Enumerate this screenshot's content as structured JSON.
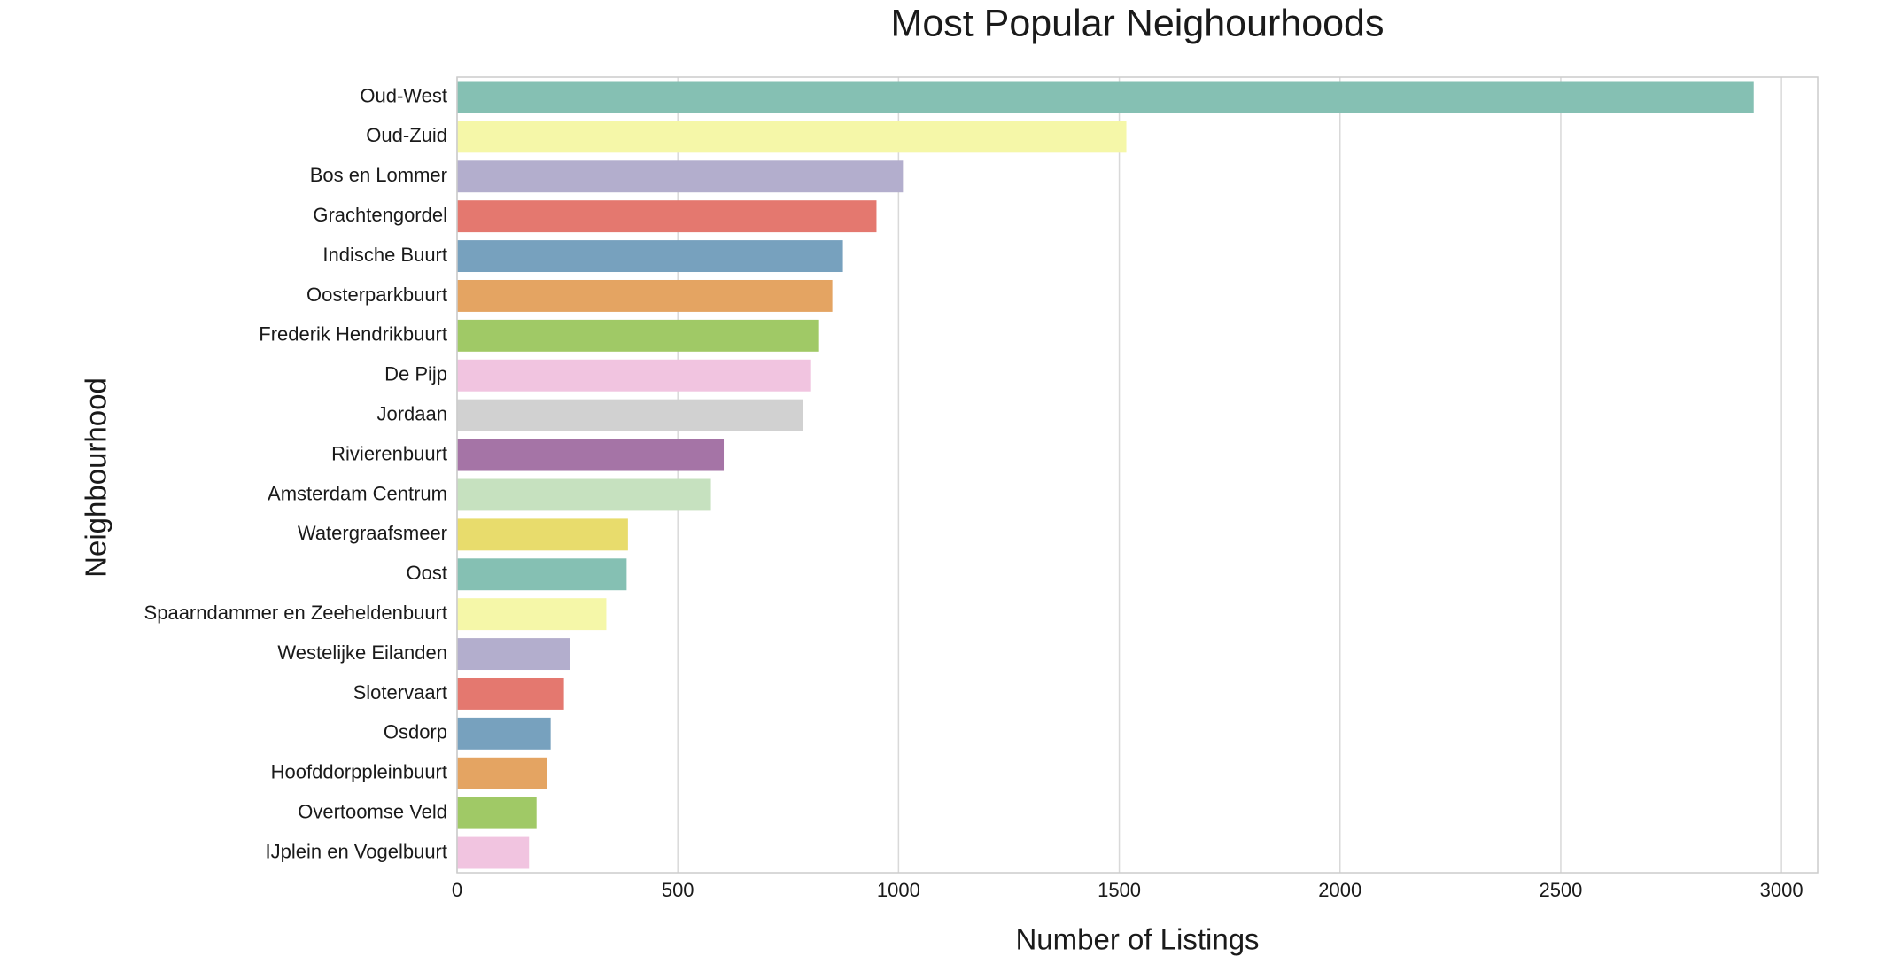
{
  "chart_data": {
    "type": "barh",
    "title": "Most Popular Neighourhoods",
    "xlabel": "Number of Listings",
    "ylabel": "Neighbourhood",
    "categories": [
      "Oud-West",
      "Oud-Zuid",
      "Bos en Lommer",
      "Grachtengordel",
      "Indische Buurt",
      "Oosterparkbuurt",
      "Frederik Hendrikbuurt",
      "De Pijp",
      "Jordaan",
      "Rivierenbuurt",
      "Amsterdam Centrum",
      "Watergraafsmeer",
      "Oost",
      "Spaarndammer en Zeeheldenbuurt",
      "Westelijke Eilanden",
      "Slotervaart",
      "Osdorp",
      "Hoofddorppleinbuurt",
      "Overtoomse Veld",
      "IJplein en Vogelbuurt"
    ],
    "values": [
      2937,
      1516,
      1010,
      950,
      874,
      850,
      820,
      800,
      784,
      604,
      575,
      387,
      384,
      338,
      256,
      242,
      212,
      204,
      180,
      163
    ],
    "colors": [
      "#85c0b3",
      "#f5f7a8",
      "#b3aecd",
      "#e4786f",
      "#77a1be",
      "#e4a462",
      "#a0c966",
      "#f1c4e0",
      "#d1d1d1",
      "#a574a6",
      "#c6e1bf",
      "#e8dc6c"
    ],
    "xlim": [
      0,
      3082
    ],
    "xticks": [
      0,
      500,
      1000,
      1500,
      2000,
      2500,
      3000
    ],
    "grid": true
  }
}
